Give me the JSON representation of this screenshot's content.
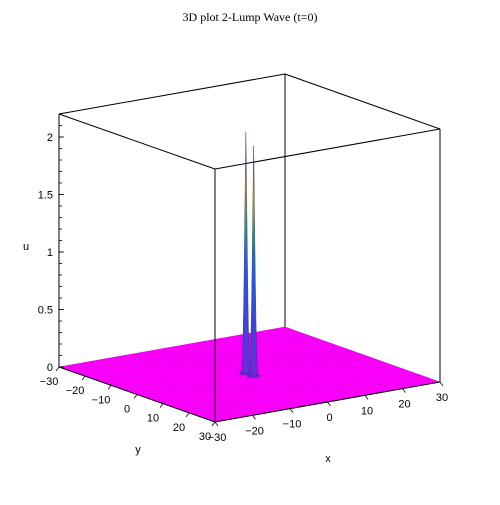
{
  "chart_data": {
    "type": "surface3d",
    "title": "3D plot 2-Lump Wave (t=0)",
    "xlabel": "x",
    "ylabel": "y",
    "zlabel": "u",
    "xlim": [
      -30,
      30
    ],
    "ylim": [
      -30,
      30
    ],
    "zlim": [
      0,
      2.2
    ],
    "x_ticks": [
      "30",
      "20",
      "10",
      "0",
      "−10",
      "−20",
      "−30"
    ],
    "y_ticks": [
      "−30",
      "−20",
      "−10",
      "0",
      "10",
      "20",
      "30"
    ],
    "z_ticks": [
      "0",
      "0.5",
      "1",
      "1.5",
      "2"
    ],
    "surface_color": "#ff00ff",
    "baseline_u": 0,
    "peaks": [
      {
        "x": 0,
        "y": 1.5,
        "u": 2.0
      },
      {
        "x": 0,
        "y": -1.5,
        "u": 2.1
      }
    ]
  }
}
